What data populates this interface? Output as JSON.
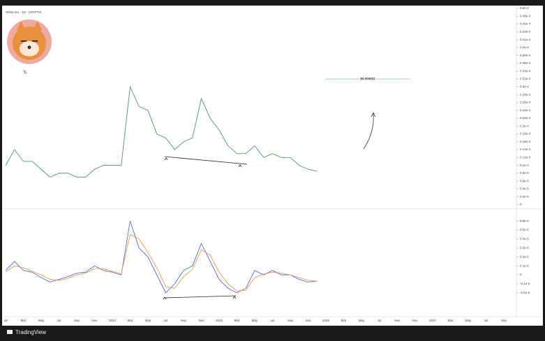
{
  "header": {
    "title": "Shiba Inu · 1D · CRYPTO",
    "brand": "TradingView"
  },
  "chart_data": [
    {
      "type": "line",
      "color": "#4f9a63",
      "values": [
        1e-05,
        1.4e-05,
        1.1e-05,
        1.1e-05,
        9e-06,
        7e-06,
        8e-06,
        8e-06,
        7e-06,
        7e-06,
        9e-06,
        1e-05,
        1e-05,
        1e-05,
        3e-05,
        2.5e-05,
        2.4e-05,
        1.8e-05,
        1.7e-05,
        1.4e-05,
        1.6e-05,
        1.7e-05,
        2.7e-05,
        2.2e-05,
        1.9e-05,
        1.5e-05,
        1.3e-05,
        1.3e-05,
        1.5e-05,
        1.2e-05,
        1.3e-05,
        1.2e-05,
        1.2e-05,
        1e-05,
        9e-06,
        8.5e-06,
        null,
        null,
        null,
        null,
        null,
        null,
        null,
        null,
        null,
        null,
        null,
        null,
        null,
        null,
        null,
        null,
        null,
        null,
        null,
        null,
        null
      ],
      "ylim": [
        0,
        5e-05
      ],
      "yticks": [
        0,
        {
          "value": 2e-06,
          "label": "0.2e-5"
        },
        {
          "value": 4e-06,
          "label": "0.4e-5"
        },
        {
          "value": 6e-06,
          "label": "0.6e-5"
        },
        {
          "value": 8e-06,
          "label": "0.8e-5"
        },
        {
          "value": 1e-05,
          "label": "0.1e-4"
        },
        {
          "value": 1.2e-05,
          "label": "0.12e-4"
        },
        {
          "value": 1.4e-05,
          "label": "0.14e-4"
        },
        {
          "value": 1.6e-05,
          "label": "0.16e-4"
        },
        {
          "value": 1.8e-05,
          "label": "0.18e-4"
        },
        {
          "value": 2e-05,
          "label": "0.2e-4"
        },
        {
          "value": 2.2e-05,
          "label": "0.22e-4"
        },
        {
          "value": 2.4e-05,
          "label": "0.24e-4"
        },
        {
          "value": 2.6e-05,
          "label": "0.26e-4"
        },
        {
          "value": 2.8e-05,
          "label": "0.28e-4"
        },
        {
          "value": 3e-05,
          "label": "0.3e-4"
        },
        {
          "value": 3.2e-05,
          "label": "0.32e-4"
        },
        {
          "value": 3.4e-05,
          "label": "0.34e-4"
        },
        {
          "value": 3.6e-05,
          "label": "0.36e-4"
        },
        {
          "value": 3.8e-05,
          "label": "0.38e-4"
        },
        {
          "value": 4e-05,
          "label": "0.4e-4"
        },
        {
          "value": 4.2e-05,
          "label": "0.42e-4"
        },
        {
          "value": 4.4e-05,
          "label": "0.44e-4"
        },
        {
          "value": 4.6e-05,
          "label": "0.46e-4"
        },
        {
          "value": 4.8e-05,
          "label": "0.48e-4"
        },
        {
          "value": 5e-05,
          "label": "0.5e-4"
        }
      ],
      "target": {
        "value": 3.2e-05,
        "label": "$0.000032"
      }
    },
    {
      "type": "line",
      "categories": [
        "23",
        null,
        "Mar",
        null,
        "May",
        null,
        "Jul",
        null,
        "Sep",
        null,
        "Nov",
        null,
        "2024",
        null,
        "Mar",
        null,
        "May",
        null,
        "Jul",
        null,
        "Sep",
        null,
        "Nov",
        null,
        "2025",
        null,
        "Mar",
        null,
        "May",
        null,
        "Jul",
        null,
        "Sep",
        null,
        "Nov",
        null,
        "2026",
        null,
        "Mar",
        null,
        "May",
        null,
        "Jul",
        null,
        "Sep",
        null,
        "Nov",
        null,
        "2027",
        null,
        "Mar",
        null,
        "May",
        null,
        "Jul",
        null,
        "Sep"
      ],
      "series": [
        {
          "color": "#4a6cf0",
          "values": [
            5e-07,
            1.5e-06,
            5e-07,
            3e-07,
            -3e-07,
            -8e-07,
            -5e-07,
            -2e-07,
            2e-07,
            3e-07,
            1e-06,
            5e-07,
            3e-07,
            0,
            6e-06,
            3e-06,
            2e-06,
            0,
            -2e-06,
            -1e-06,
            5e-07,
            1e-06,
            3.5e-06,
            1.5e-06,
            -5e-07,
            -1.5e-06,
            -2e-06,
            -1.5e-06,
            5e-07,
            0,
            5e-07,
            0,
            0,
            -5e-07,
            -8e-07,
            -7e-07,
            null,
            null,
            null,
            null,
            null,
            null,
            null,
            null,
            null,
            null,
            null,
            null,
            null,
            null,
            null,
            null,
            null,
            null,
            null,
            null,
            null
          ]
        },
        {
          "color": "#f0994a",
          "values": [
            3e-07,
            1e-06,
            8e-07,
            4e-07,
            0,
            -5e-07,
            -6e-07,
            -4e-07,
            0,
            2e-07,
            7e-07,
            7e-07,
            4e-07,
            1e-07,
            4.5e-06,
            4e-06,
            2.5e-06,
            8e-07,
            -1.3e-06,
            -1.5e-06,
            -2e-07,
            6e-07,
            2.8e-06,
            2.2e-06,
            3e-07,
            -1e-06,
            -1.8e-06,
            -1.7e-06,
            -3e-07,
            1e-07,
            3e-07,
            2e-07,
            0,
            -3e-07,
            -6e-07,
            -7e-07,
            null,
            null,
            null,
            null,
            null,
            null,
            null,
            null,
            null,
            null,
            null,
            null,
            null,
            null,
            null,
            null,
            null,
            null,
            null,
            null,
            null
          ]
        }
      ],
      "ylim": [
        -3e-06,
        7e-06
      ],
      "yticks": [
        {
          "value": -2e-06,
          "label": "-0.2e-5"
        },
        {
          "value": -1e-06,
          "label": "-0.1e-5"
        },
        0,
        {
          "value": 1e-06,
          "label": "0.1e-5"
        },
        {
          "value": 2e-06,
          "label": "0.2e-5"
        },
        {
          "value": 3e-06,
          "label": "0.3e-5"
        },
        {
          "value": 4e-06,
          "label": "0.4e-5"
        },
        {
          "value": 5e-06,
          "label": "0.5e-5"
        },
        {
          "value": 6e-06,
          "label": "0.6e-5"
        }
      ]
    }
  ]
}
